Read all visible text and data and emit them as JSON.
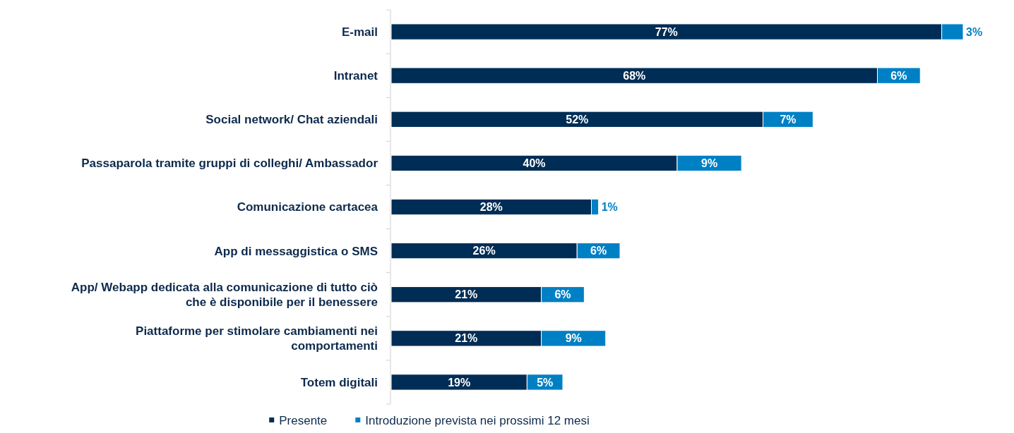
{
  "chart_data": {
    "type": "bar",
    "orientation": "horizontal",
    "stacked": true,
    "legend": "bottom",
    "categories": [
      "E-mail",
      "Intranet",
      "Social network/ Chat aziendali",
      "Passaparola tramite gruppi di colleghi/ Ambassador",
      "Comunicazione cartacea",
      "App di messaggistica o SMS",
      "App/ Webapp dedicata alla comunicazione di tutto ciò che è disponibile per il benessere",
      "Piattaforme per stimolare cambiamenti nei comportamenti",
      "Totem digitali"
    ],
    "series": [
      {
        "name": "Presente",
        "color": "#002d55",
        "values": [
          77,
          68,
          52,
          40,
          28,
          26,
          21,
          21,
          19
        ],
        "value_labels": [
          "77%",
          "68%",
          "52%",
          "40%",
          "28%",
          "26%",
          "21%",
          "21%",
          "19%"
        ]
      },
      {
        "name": "Introduzione prevista nei prossimi 12 mesi",
        "color": "#0080c4",
        "values": [
          3,
          6,
          7,
          9,
          1,
          6,
          6,
          9,
          5
        ],
        "value_labels": [
          "3%",
          "6%",
          "7%",
          "9%",
          "1%",
          "6%",
          "6%",
          "9%",
          "5%"
        ]
      }
    ]
  }
}
